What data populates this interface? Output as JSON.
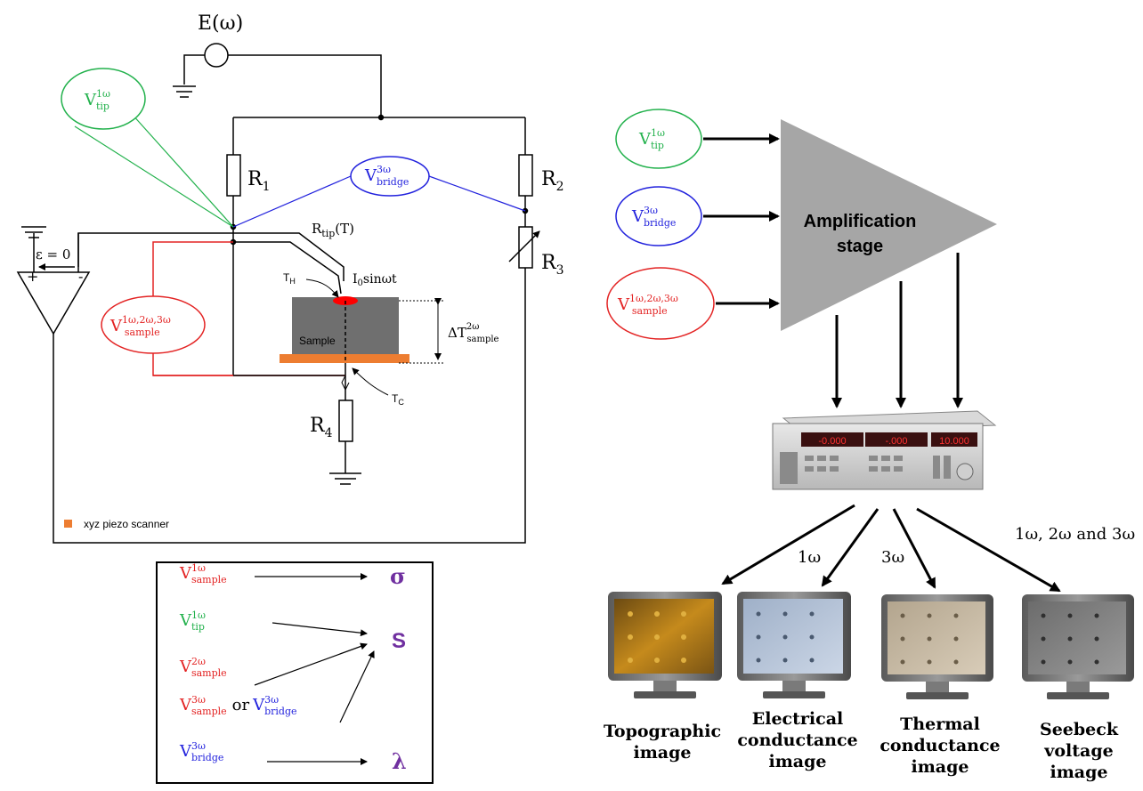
{
  "colors": {
    "green": "#22b14c",
    "blue": "#2222dd",
    "red": "#e32323",
    "purple": "#7030a0",
    "orange": "#ed7d31",
    "gray": "#a6a6a6",
    "sample": "#6f6f6f",
    "black": "#000000"
  },
  "circuit": {
    "source": "E(ω)",
    "epsilon": "ε = 0",
    "r1": "R",
    "r1_sub": "1",
    "r2": "R",
    "r2_sub": "2",
    "r3": "R",
    "r3_sub": "3",
    "r4": "R",
    "r4_sub": "4",
    "rtip": "R",
    "rtip_sub": "tip",
    "rtip_arg": "(T)",
    "current": "I",
    "current_sub": "0",
    "current_rest": "sinωt",
    "th": "T",
    "th_sub": "H",
    "tc": "T",
    "tc_sub": "C",
    "sample_label": "Sample",
    "delta_t": "ΔT",
    "delta_t_sup": "2ω",
    "delta_t_sub": "sample",
    "legend": "xyz piezo scanner"
  },
  "voltages": {
    "v": "V",
    "tip_sup": "1ω",
    "tip_sub": "tip",
    "bridge_sup": "3ω",
    "bridge_sub": "bridge",
    "sample_sup": "1ω,2ω,3ω",
    "sample_sub": "sample"
  },
  "box": {
    "r1_sup": "1ω",
    "r1_sub": "sample",
    "r1_result": "σ",
    "r2_sup": "1ω",
    "r2_sub": "tip",
    "r3_sup": "2ω",
    "r3_sub": "sample",
    "r3_result": "S",
    "r4a_sup": "3ω",
    "r4a_sub": "sample",
    "r4_or": "or",
    "r4b_sup": "3ω",
    "r4b_sub": "bridge",
    "r5_sup": "3ω",
    "r5_sub": "bridge",
    "r5_result": "λ"
  },
  "right": {
    "amp_line1": "Amplification",
    "amp_line2": "stage",
    "lockin_readouts": [
      "-0.000",
      "-.000",
      "10.000"
    ],
    "labels": [
      "1ω",
      "3ω",
      "1ω, 2ω and 3ω"
    ],
    "monitors": [
      {
        "line1": "Topographic",
        "line2": "image",
        "line3": ""
      },
      {
        "line1": "Electrical",
        "line2": "conductance",
        "line3": "image"
      },
      {
        "line1": "Thermal",
        "line2": "conductance",
        "line3": "image"
      },
      {
        "line1": "Seebeck",
        "line2": "voltage",
        "line3": "image"
      }
    ]
  }
}
